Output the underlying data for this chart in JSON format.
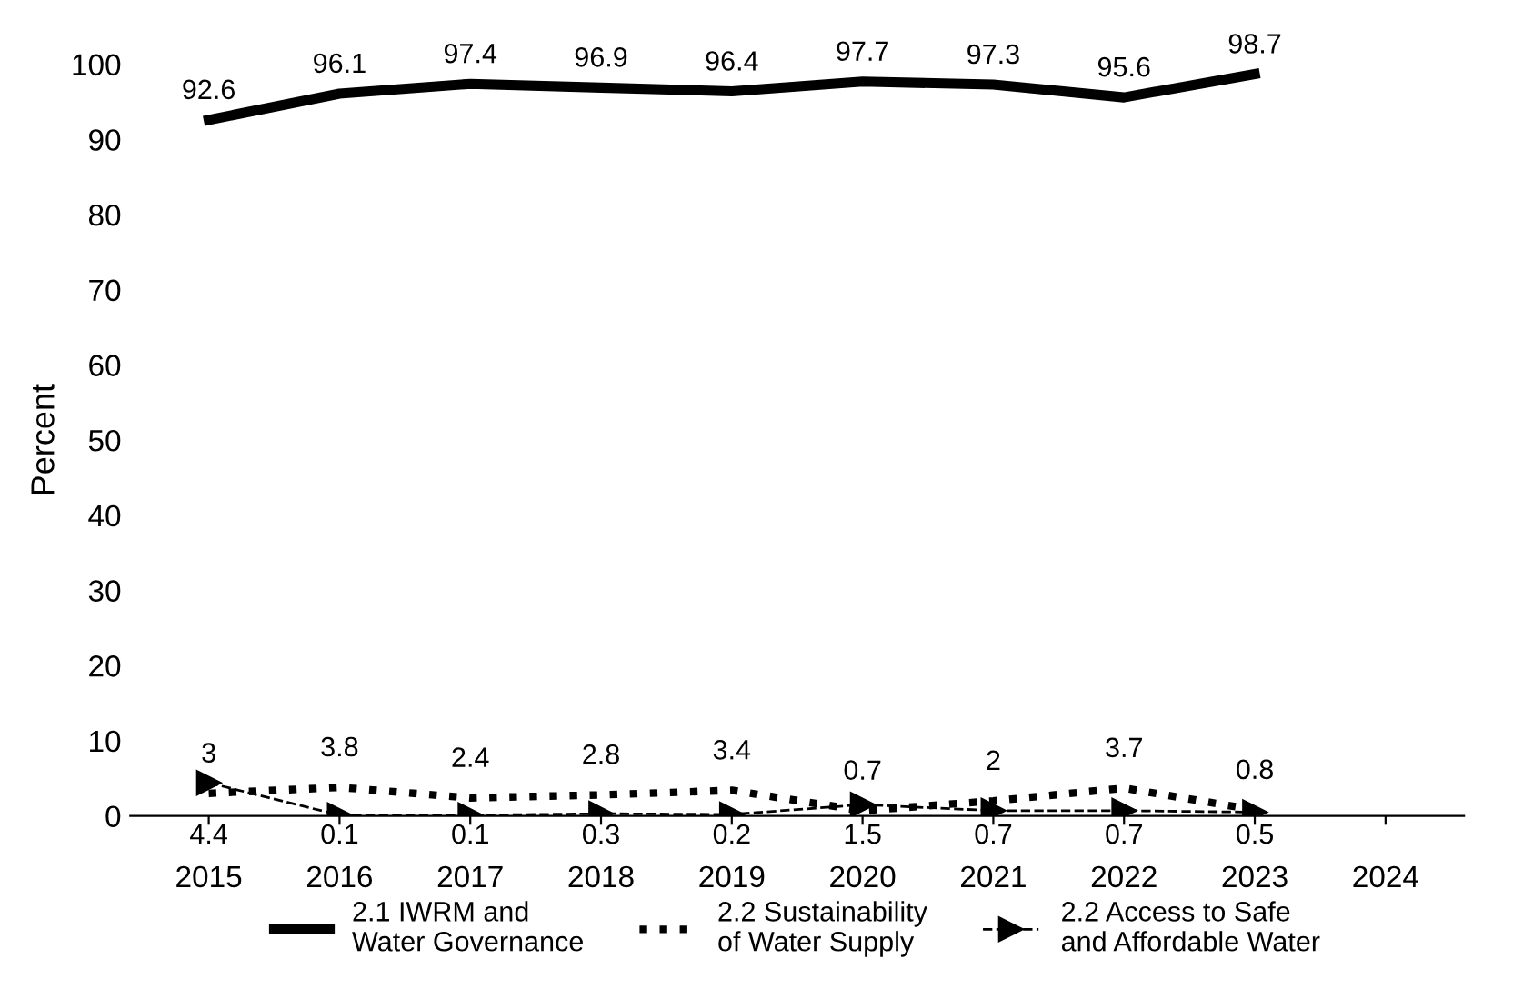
{
  "chart_data": {
    "type": "line",
    "ylabel": "Percent",
    "categories": [
      "2015",
      "2016",
      "2017",
      "2018",
      "2019",
      "2020",
      "2021",
      "2022",
      "2023",
      "2024"
    ],
    "series": [
      {
        "name": "2.1 IWRM and\nWater Governance",
        "color": "#000000",
        "line_style": "solid",
        "marker": "none",
        "values": [
          92.6,
          96.1,
          97.4,
          96.9,
          96.4,
          97.7,
          97.3,
          95.6,
          98.7,
          null
        ]
      },
      {
        "name": "2.2 Sustainability\nof Water Supply",
        "color": "#000000",
        "line_style": "dotted",
        "marker": "none",
        "values": [
          3,
          3.8,
          2.4,
          2.8,
          3.4,
          0.7,
          2,
          3.7,
          0.8,
          null
        ]
      },
      {
        "name": "2.2 Access to Safe\nand Affordable Water",
        "color": "#000000",
        "line_style": "dashed",
        "marker": "triangle",
        "values": [
          4.4,
          0.1,
          0.1,
          0.3,
          0.2,
          1.5,
          0.7,
          0.7,
          0.5,
          null
        ]
      }
    ],
    "ylim": [
      0,
      100
    ],
    "yticks": [
      0,
      10,
      20,
      30,
      40,
      50,
      60,
      70,
      80,
      90,
      100
    ],
    "data_labels": true,
    "legend": "bottom",
    "grid": false
  }
}
